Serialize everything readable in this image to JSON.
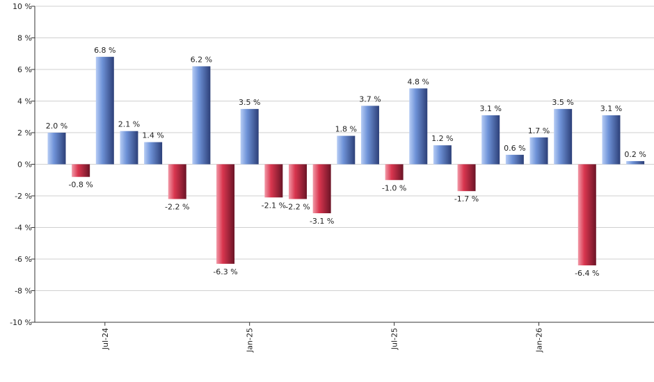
{
  "chart_data": {
    "type": "bar",
    "ylim": [
      -10,
      10
    ],
    "yticks": [
      -10,
      -8,
      -6,
      -4,
      -2,
      0,
      2,
      4,
      6,
      8,
      10
    ],
    "ytick_suffix": " %",
    "grid": true,
    "xtick_labels": [
      {
        "label": "Jul-24",
        "index": 2
      },
      {
        "label": "Jan-25",
        "index": 8
      },
      {
        "label": "Jul-25",
        "index": 14
      },
      {
        "label": "Jan-26",
        "index": 20
      }
    ],
    "values": [
      2.0,
      -0.8,
      6.8,
      2.1,
      1.4,
      -2.2,
      6.2,
      -6.3,
      3.5,
      -2.1,
      -2.2,
      -3.1,
      1.8,
      3.7,
      -1.0,
      4.8,
      1.2,
      -1.7,
      3.1,
      0.6,
      1.7,
      3.5,
      -6.4,
      3.1,
      0.2
    ],
    "data_labels": [
      "2.0 %",
      "-0.8 %",
      "6.8 %",
      "2.1 %",
      "1.4 %",
      "-2.2 %",
      "6.2 %",
      "-6.3 %",
      "3.5 %",
      "-2.1 %",
      "-2.2 %",
      "-3.1 %",
      "1.8 %",
      "3.7 %",
      "-1.0 %",
      "4.8 %",
      "1.2 %",
      "-1.7 %",
      "3.1 %",
      "0.6 %",
      "1.7 %",
      "3.5 %",
      "-6.4 %",
      "3.1 %",
      "0.2 %"
    ],
    "colors": {
      "positive_light": "#b7cdf5",
      "positive_mid": "#6f93d8",
      "positive_dark": "#2c3f78",
      "negative_light": "#f29aa8",
      "negative_mid": "#d9364f",
      "negative_dark": "#6b1426"
    }
  }
}
